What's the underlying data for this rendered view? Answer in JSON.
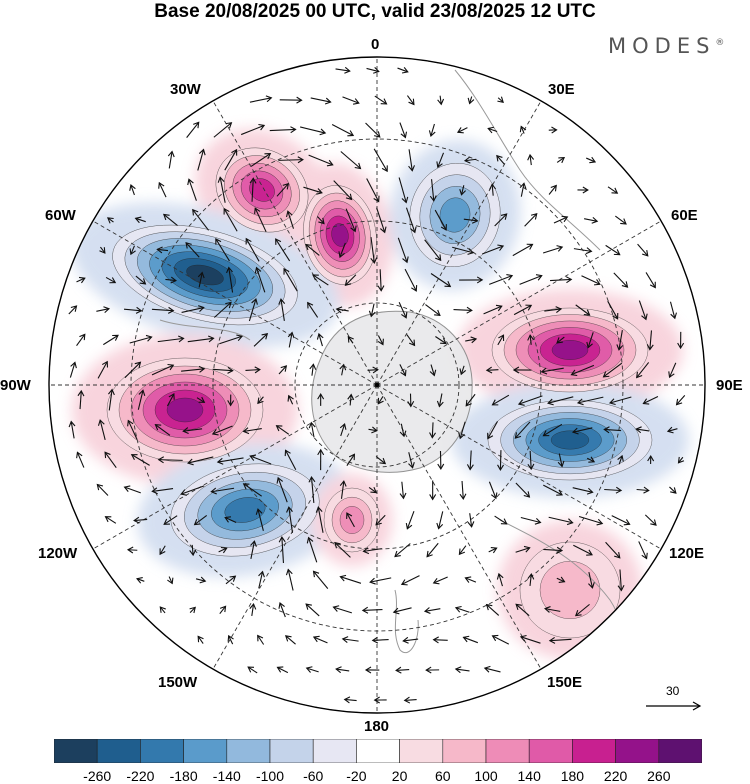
{
  "header": {
    "title": "Base 20/08/2025 00 UTC, valid 23/08/2025 12 UTC",
    "brand": "MODES",
    "brand_mark": "®"
  },
  "map": {
    "projection": "south-polar-stereographic",
    "longitude_labels": {
      "top": "0",
      "top_right": "30E",
      "right_upper": "60E",
      "right": "90E",
      "right_lower": "120E",
      "bottom_right": "150E",
      "bottom": "180",
      "bottom_left": "150W",
      "left_lower": "120W",
      "left": "90W",
      "left_upper": "60W",
      "top_left": "30W"
    },
    "wind_reference_value": "30",
    "anomaly_centers": [
      {
        "name": "positive-anomaly-south-atlantic-west",
        "sign": "positive",
        "value": 200
      },
      {
        "name": "positive-anomaly-weddell",
        "sign": "positive",
        "value": 220
      },
      {
        "name": "negative-anomaly-south-atlantic-east",
        "sign": "negative",
        "value": -140
      },
      {
        "name": "negative-anomaly-south-pacific-east",
        "sign": "negative",
        "value": -260
      },
      {
        "name": "positive-anomaly-amundsen",
        "sign": "positive",
        "value": 240
      },
      {
        "name": "negative-anomaly-south-pacific-central",
        "sign": "negative",
        "value": -180
      },
      {
        "name": "positive-anomaly-ross",
        "sign": "positive",
        "value": 100
      },
      {
        "name": "positive-anomaly-indian-ocean",
        "sign": "positive",
        "value": 240
      },
      {
        "name": "negative-anomaly-south-of-australia",
        "sign": "negative",
        "value": -220
      },
      {
        "name": "positive-anomaly-tasman",
        "sign": "positive",
        "value": 80
      }
    ]
  },
  "colorbar": {
    "ticks": [
      "-260",
      "-220",
      "-180",
      "-140",
      "-100",
      "-60",
      "-20",
      "20",
      "60",
      "100",
      "140",
      "180",
      "220",
      "260"
    ],
    "colors": [
      "#1c3f5e",
      "#1f5e8e",
      "#3379ad",
      "#5a9bcb",
      "#92b9dd",
      "#c4d3ea",
      "#e7e7f3",
      "#ffffff",
      "#f8dce2",
      "#f6b8c9",
      "#ee8cb7",
      "#e05aa8",
      "#c82090",
      "#94128a",
      "#5e1170"
    ]
  }
}
